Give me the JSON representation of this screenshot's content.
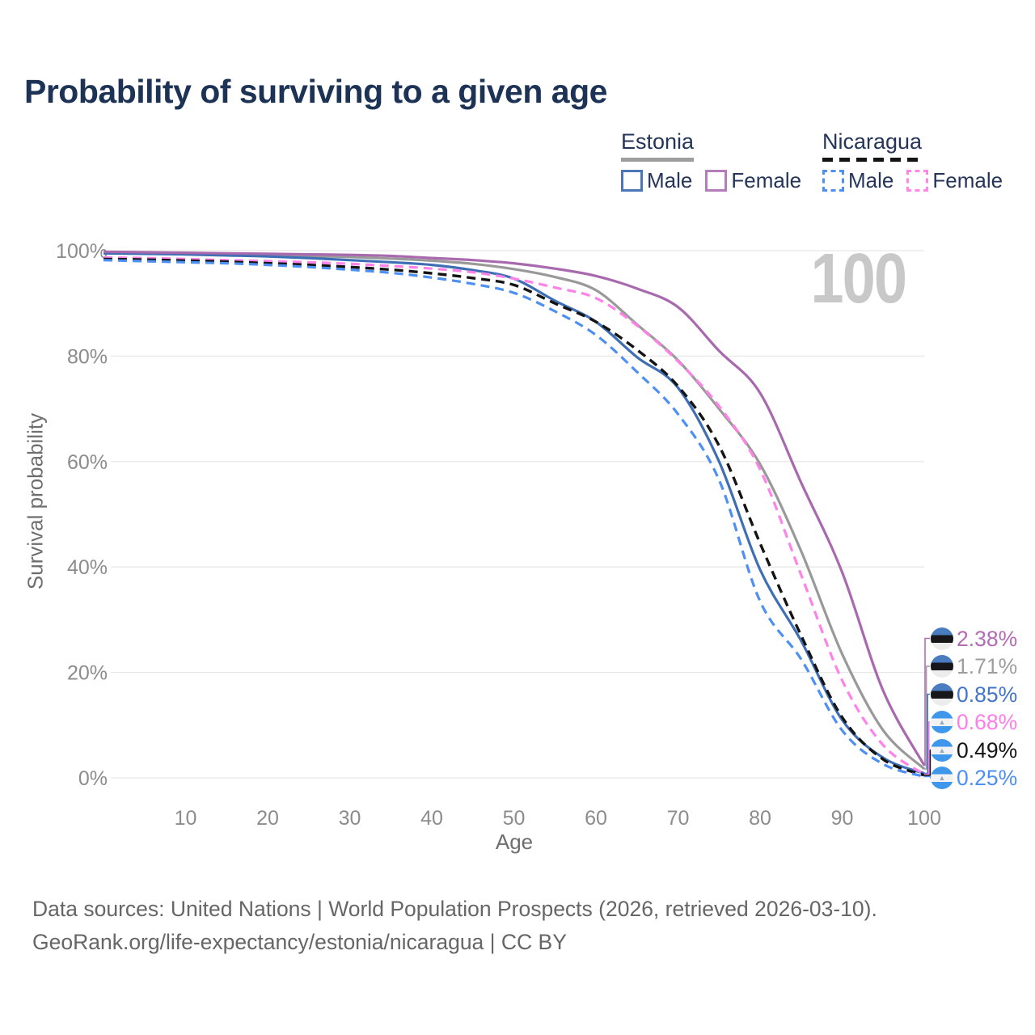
{
  "title": "Probability of surviving to a given age",
  "age_counter": "100",
  "legend": {
    "groups": [
      {
        "name": "Estonia",
        "line_style": "solid",
        "underline_color": "#9e9e9e",
        "items": [
          {
            "label": "Male",
            "color": "#4a77b8"
          },
          {
            "label": "Female",
            "color": "#b57cba"
          }
        ]
      },
      {
        "name": "Nicaragua",
        "line_style": "dashed",
        "underline_color": "#141414",
        "items": [
          {
            "label": "Male",
            "color": "#4d8ff2"
          },
          {
            "label": "Female",
            "color": "#ff85e8"
          }
        ]
      }
    ]
  },
  "chart_data": {
    "type": "line",
    "title": "Probability of surviving to a given age",
    "xlabel": "Age",
    "ylabel": "Survival probability",
    "xlim": [
      0,
      100
    ],
    "ylim": [
      0,
      100
    ],
    "grid": "horizontal",
    "x_ticks": [
      10,
      20,
      30,
      40,
      50,
      60,
      70,
      80,
      90,
      100
    ],
    "y_ticks": [
      "0%",
      "20%",
      "40%",
      "60%",
      "80%",
      "100%"
    ],
    "x": [
      0,
      5,
      10,
      15,
      20,
      25,
      30,
      35,
      40,
      45,
      50,
      55,
      60,
      65,
      70,
      75,
      80,
      85,
      90,
      95,
      100
    ],
    "series": [
      {
        "name": "Estonia Female",
        "country": "Estonia",
        "sex": "Female",
        "flag": "estonia",
        "color": "#a869ae",
        "dash": false,
        "end_label": "2.38%",
        "end_label_color": "#b36cb4",
        "values": [
          99.8,
          99.7,
          99.6,
          99.5,
          99.4,
          99.3,
          99.2,
          99.0,
          98.6,
          98.2,
          97.6,
          96.6,
          95.2,
          92.8,
          89.3,
          81.0,
          73.0,
          56.0,
          39.0,
          16.5,
          2.38
        ]
      },
      {
        "name": "Estonia Both sexes",
        "country": "Estonia",
        "sex": "All",
        "flag": "estonia",
        "color": "#999999",
        "dash": false,
        "end_label": "1.71%",
        "end_label_color": "#9e9e9e",
        "values": [
          99.7,
          99.6,
          99.5,
          99.4,
          99.2,
          99.0,
          98.8,
          98.5,
          98.1,
          97.5,
          96.5,
          95.0,
          92.5,
          86.0,
          79.2,
          70.0,
          59.5,
          43.0,
          23.5,
          9.0,
          1.71
        ]
      },
      {
        "name": "Estonia Male",
        "country": "Estonia",
        "sex": "Male",
        "flag": "estonia",
        "color": "#3e6fb4",
        "dash": false,
        "end_label": "0.85%",
        "end_label_color": "#4375c8",
        "values": [
          99.5,
          99.4,
          99.3,
          99.1,
          98.9,
          98.6,
          98.2,
          97.8,
          97.3,
          96.3,
          94.7,
          90.5,
          86.5,
          79.8,
          74.0,
          60.0,
          39.5,
          26.0,
          11.0,
          3.8,
          0.85
        ]
      },
      {
        "name": "Nicaragua Female",
        "country": "Nicaragua",
        "sex": "Female",
        "flag": "nicaragua",
        "color": "#ff82e9",
        "dash": true,
        "end_label": "0.68%",
        "end_label_color": "#ff7de9",
        "values": [
          98.7,
          98.6,
          98.4,
          98.2,
          98.0,
          97.8,
          97.5,
          97.1,
          96.6,
          95.9,
          94.7,
          93.0,
          91.0,
          85.8,
          79.0,
          70.5,
          58.5,
          38.5,
          18.5,
          6.2,
          0.68
        ]
      },
      {
        "name": "Nicaragua Both sexes",
        "country": "Nicaragua",
        "sex": "All",
        "flag": "nicaragua",
        "color": "#141414",
        "dash": true,
        "end_label": "0.49%",
        "end_label_color": "#141414",
        "values": [
          98.4,
          98.3,
          98.1,
          97.9,
          97.6,
          97.3,
          96.9,
          96.4,
          95.7,
          94.8,
          93.5,
          90.0,
          86.5,
          81.2,
          74.3,
          63.0,
          44.5,
          27.0,
          11.5,
          3.5,
          0.49
        ]
      },
      {
        "name": "Nicaragua Male",
        "country": "Nicaragua",
        "sex": "Male",
        "flag": "nicaragua",
        "color": "#4d8ff2",
        "dash": true,
        "end_label": "0.25%",
        "end_label_color": "#4d8ff2",
        "values": [
          98.2,
          98.0,
          97.8,
          97.6,
          97.3,
          96.9,
          96.4,
          95.8,
          94.9,
          93.7,
          92.0,
          88.5,
          84.0,
          77.0,
          69.0,
          56.5,
          33.5,
          22.5,
          9.0,
          2.6,
          0.25
        ]
      }
    ]
  },
  "footer": {
    "line1": "Data sources: United Nations | World Population Prospects (2026, retrieved 2026-03-10).",
    "line2": "GeoRank.org/life-expectancy/estonia/nicaragua | CC BY"
  }
}
